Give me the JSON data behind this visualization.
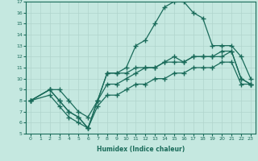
{
  "xlabel": "Humidex (Indice chaleur)",
  "xlim": [
    -0.5,
    23.5
  ],
  "ylim": [
    5,
    17
  ],
  "xticks": [
    0,
    1,
    2,
    3,
    4,
    5,
    6,
    7,
    8,
    9,
    10,
    11,
    12,
    13,
    14,
    15,
    16,
    17,
    18,
    19,
    20,
    21,
    22,
    23
  ],
  "yticks": [
    5,
    6,
    7,
    8,
    9,
    10,
    11,
    12,
    13,
    14,
    15,
    16,
    17
  ],
  "bg_color": "#c5e8e0",
  "grid_color": "#b0d4cc",
  "line_color": "#1a6b5a",
  "line1_x": [
    0,
    2,
    3,
    4,
    5,
    6,
    7,
    8,
    9,
    10,
    11,
    12,
    13,
    14,
    15,
    16,
    17,
    18,
    19,
    20,
    21,
    22,
    23
  ],
  "line1_y": [
    8,
    9,
    9,
    8,
    7,
    6.5,
    8,
    10.5,
    10.5,
    10.5,
    11,
    11,
    11,
    11.5,
    11.5,
    11.5,
    12,
    12,
    12,
    12,
    12.5,
    10,
    9.5
  ],
  "line2_x": [
    0,
    2,
    3,
    4,
    5,
    6,
    7,
    8,
    9,
    10,
    11,
    12,
    13,
    14,
    15,
    16,
    17,
    18,
    19,
    20,
    21,
    22,
    23
  ],
  "line2_y": [
    8,
    9,
    8,
    7,
    6.5,
    5.5,
    8,
    10.5,
    10.5,
    11,
    13,
    13.5,
    15,
    16.5,
    17,
    17,
    16,
    15.5,
    13,
    13,
    13,
    12,
    10
  ],
  "line3_x": [
    0,
    2,
    3,
    4,
    5,
    6,
    7,
    8,
    9,
    10,
    11,
    12,
    13,
    14,
    15,
    16,
    17,
    18,
    19,
    20,
    21,
    22,
    23
  ],
  "line3_y": [
    8,
    9,
    8,
    7,
    6.5,
    5.5,
    8,
    9.5,
    9.5,
    10,
    10.5,
    11,
    11,
    11.5,
    12,
    11.5,
    12,
    12,
    12,
    12.5,
    12.5,
    10,
    9.5
  ],
  "line_bottom_x": [
    0,
    2,
    3,
    4,
    5,
    6,
    7,
    8,
    9,
    10,
    11,
    12,
    13,
    14,
    15,
    16,
    17,
    18,
    19,
    20,
    21,
    22,
    23
  ],
  "line_bottom_y": [
    8,
    8.5,
    7.5,
    6.5,
    6.0,
    5.5,
    7.5,
    8.5,
    8.5,
    9.0,
    9.5,
    9.5,
    10,
    10,
    10.5,
    10.5,
    11,
    11,
    11,
    11.5,
    11.5,
    9.5,
    9.5
  ]
}
